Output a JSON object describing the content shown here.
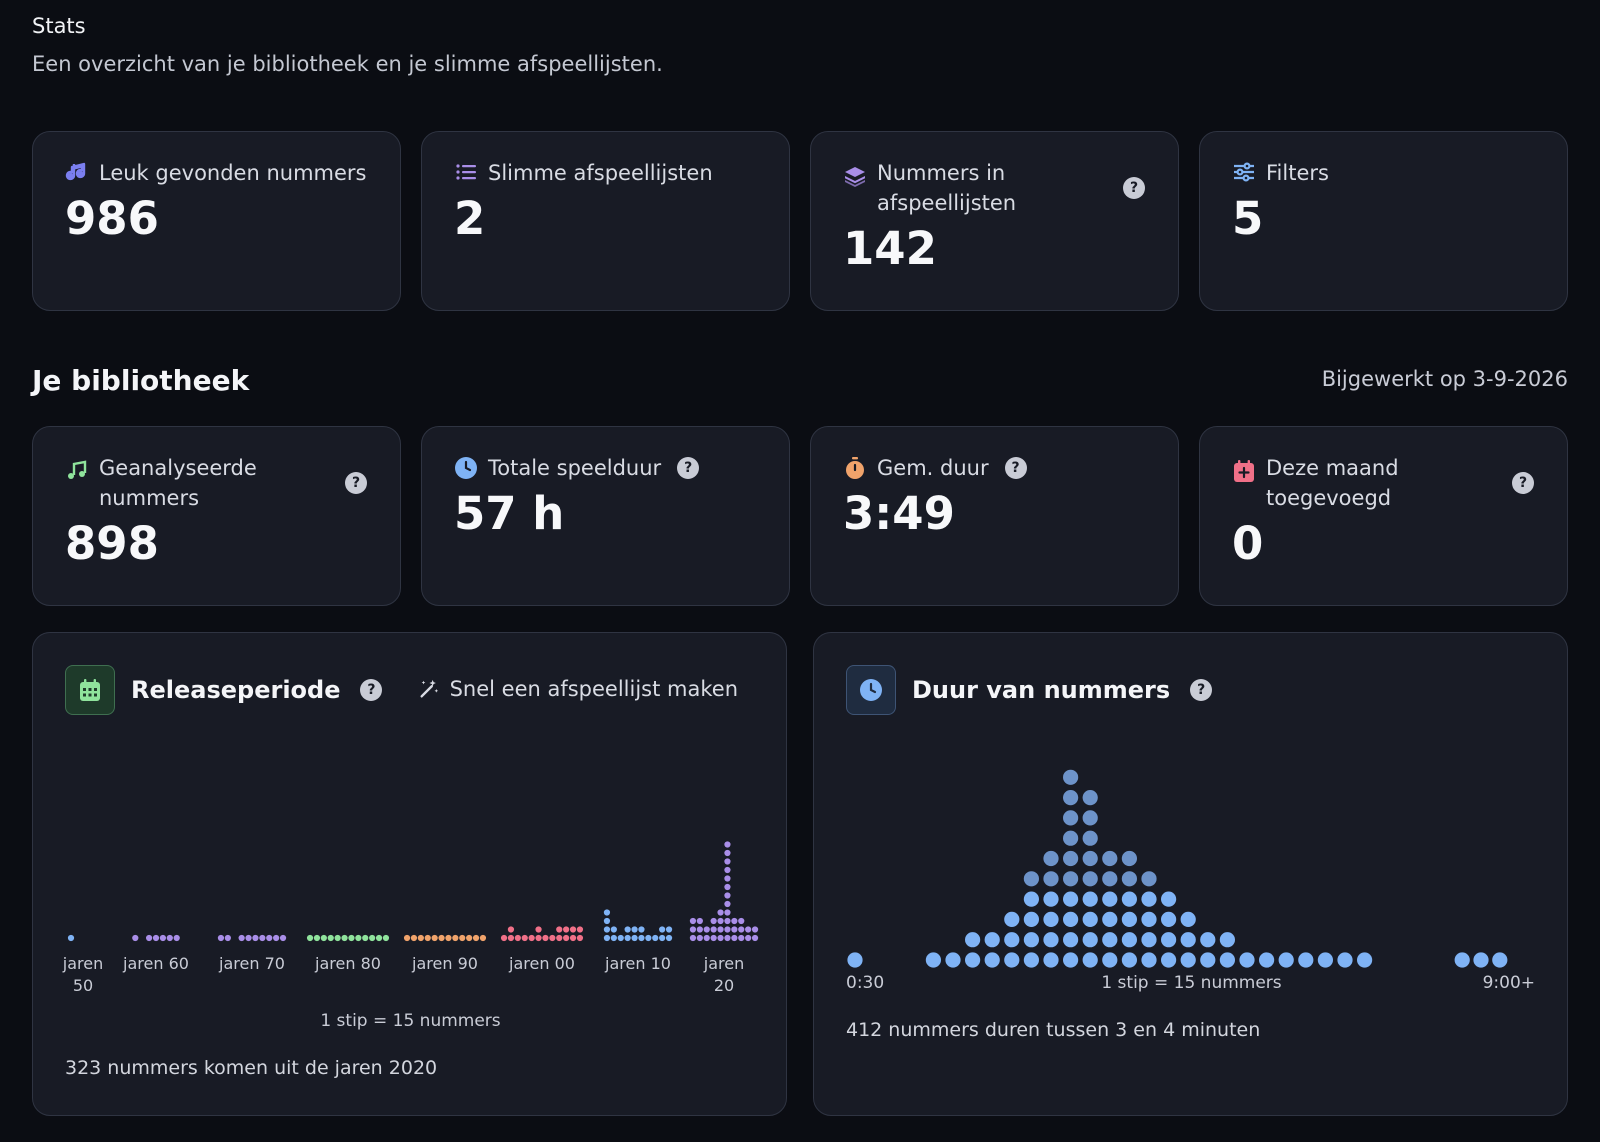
{
  "header": {
    "title": "Stats",
    "subtitle": "Een overzicht van je bibliotheek en je slimme afspeellijsten."
  },
  "top_stats": [
    {
      "label": "Leuk gevonden nummers",
      "value": "986",
      "icon": "music-note-icon",
      "color": "#7b7ff0"
    },
    {
      "label": "Slimme afspeellijsten",
      "value": "2",
      "icon": "list-icon",
      "color": "#a98ee8"
    },
    {
      "label": "Nummers in afspeellijsten",
      "value": "142",
      "icon": "layers-icon",
      "color": "#a98ee8"
    },
    {
      "label": "Filters",
      "value": "5",
      "icon": "sliders-icon",
      "color": "#7fb3f5"
    }
  ],
  "library": {
    "title": "Je bibliotheek",
    "updated": "Bijgewerkt op 3-9-2026",
    "stats": [
      {
        "label": "Geanalyseerde nummers",
        "value": "898",
        "icon": "music-note-icon",
        "color": "#8fe39c"
      },
      {
        "label": "Totale speelduur",
        "value": "57 h",
        "icon": "clock-icon",
        "color": "#7fb3f5"
      },
      {
        "label": "Gem. duur",
        "value": "3:49",
        "icon": "stopwatch-icon",
        "color": "#f0a36b"
      },
      {
        "label": "Deze maand toegevoegd",
        "value": "0",
        "icon": "calendar-plus-icon",
        "color": "#f07088"
      }
    ]
  },
  "release_chart": {
    "title": "Releaseperiode",
    "action": "Snel een afspeellijst maken",
    "note": "1 stip = 15 nummers",
    "footer": "323 nummers komen uit de jaren 2020",
    "icon": "calendar-icon",
    "accent": "#8fe39c"
  },
  "duration_chart": {
    "title": "Duur van nummers",
    "note": "1 stip = 15 nummers",
    "footer": "412 nummers duren tussen 3 en 4 minuten",
    "min_label": "0:30",
    "max_label": "9:00+",
    "icon": "clock-icon",
    "accent": "#7fb3f5"
  },
  "chart_data": [
    {
      "type": "dot-histogram",
      "title": "Releaseperiode",
      "note": "1 stip = 15 nummers",
      "categories": [
        "jaren 50",
        "jaren 60",
        "jaren 70",
        "jaren 80",
        "jaren 90",
        "jaren 00",
        "jaren 10",
        "jaren 20"
      ],
      "colors": [
        "#7fb3f5",
        "#a98ee8",
        "#a98ee8",
        "#8fe39c",
        "#f0a36b",
        "#f07088",
        "#7fb3f5",
        "#a98ee8"
      ],
      "column_dot_counts": [
        [
          1
        ],
        [
          1,
          0,
          1,
          1,
          1,
          1,
          1
        ],
        [
          1,
          1,
          0,
          1,
          1,
          1,
          1,
          1,
          1,
          1
        ],
        [
          1,
          1,
          1,
          1,
          1,
          1,
          1,
          1,
          1,
          1,
          1,
          1
        ],
        [
          1,
          1,
          1,
          1,
          1,
          1,
          1,
          1,
          1,
          1,
          1,
          1
        ],
        [
          1,
          2,
          1,
          1,
          1,
          2,
          1,
          1,
          2,
          2,
          2,
          2
        ],
        [
          4,
          2,
          1,
          2,
          2,
          2,
          1,
          1,
          2,
          2
        ],
        [
          3,
          3,
          2,
          3,
          4,
          12,
          3,
          3,
          2,
          2
        ]
      ]
    },
    {
      "type": "dot-histogram",
      "title": "Duur van nummers",
      "note": "1 stip = 15 nummers",
      "x_range_labels": [
        "0:30",
        "9:00+"
      ],
      "column_dot_counts": [
        1,
        0,
        0,
        0,
        1,
        1,
        2,
        2,
        3,
        5,
        6,
        10,
        9,
        6,
        6,
        5,
        4,
        3,
        2,
        2,
        1,
        1,
        1,
        1,
        1,
        1,
        1,
        0,
        0,
        0,
        0,
        0,
        1,
        1,
        1
      ],
      "color": "#7fb3f5",
      "peak_color": "#6d93c9"
    }
  ]
}
